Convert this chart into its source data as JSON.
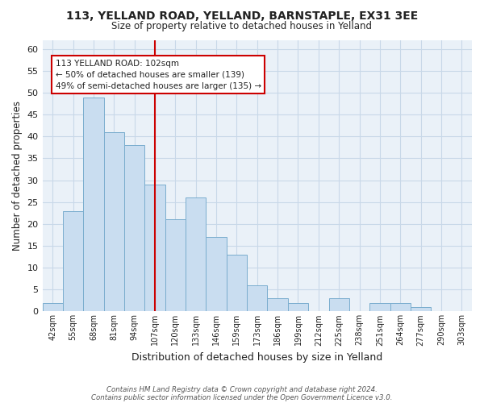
{
  "title": "113, YELLAND ROAD, YELLAND, BARNSTAPLE, EX31 3EE",
  "subtitle": "Size of property relative to detached houses in Yelland",
  "xlabel": "Distribution of detached houses by size in Yelland",
  "ylabel": "Number of detached properties",
  "bar_labels": [
    "42sqm",
    "55sqm",
    "68sqm",
    "81sqm",
    "94sqm",
    "107sqm",
    "120sqm",
    "133sqm",
    "146sqm",
    "159sqm",
    "173sqm",
    "186sqm",
    "199sqm",
    "212sqm",
    "225sqm",
    "238sqm",
    "251sqm",
    "264sqm",
    "277sqm",
    "290sqm",
    "303sqm"
  ],
  "bar_values": [
    2,
    23,
    49,
    41,
    38,
    29,
    21,
    26,
    17,
    13,
    6,
    3,
    2,
    0,
    3,
    0,
    2,
    2,
    1,
    0,
    0
  ],
  "bar_color": "#c9ddf0",
  "bar_edge_color": "#7aadce",
  "bar_width": 1.0,
  "ylim": [
    0,
    62
  ],
  "yticks": [
    0,
    5,
    10,
    15,
    20,
    25,
    30,
    35,
    40,
    45,
    50,
    55,
    60
  ],
  "vline_x_idx": 5,
  "vline_color": "#cc0000",
  "ann_line1": "113 YELLAND ROAD: 102sqm",
  "ann_line2": "← 50% of detached houses are smaller (139)",
  "ann_line3": "49% of semi-detached houses are larger (135) →",
  "footer_line1": "Contains HM Land Registry data © Crown copyright and database right 2024.",
  "footer_line2": "Contains public sector information licensed under the Open Government Licence v3.0.",
  "background_color": "#ffffff",
  "plot_bg_color": "#eaf1f8",
  "grid_color": "#c8d8e8"
}
